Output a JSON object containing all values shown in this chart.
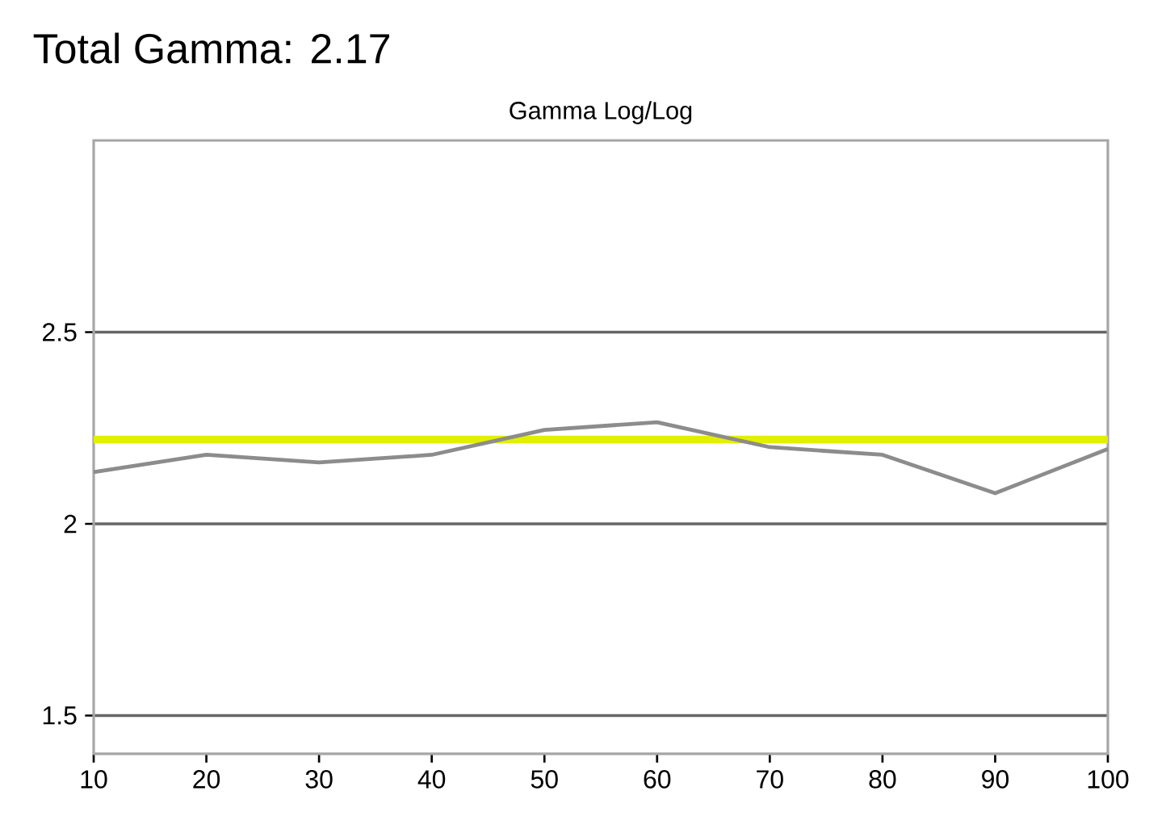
{
  "chart_data": {
    "type": "line",
    "title": "Total Gamma: 2.17",
    "subtitle": "Gamma Log/Log",
    "x": [
      10,
      20,
      30,
      40,
      50,
      60,
      70,
      80,
      90,
      100
    ],
    "series": [
      {
        "color": "#8c8c8c",
        "values": [
          2.135,
          2.18,
          2.16,
          2.18,
          2.245,
          2.265,
          2.2,
          2.18,
          2.08,
          2.195
        ]
      }
    ],
    "ref_lines": [
      {
        "axis": "y",
        "value": 2.22,
        "color": "#e2f000"
      }
    ],
    "xlim": [
      10,
      100
    ],
    "ylim": [
      1.4,
      3.0
    ],
    "xticks": [
      10,
      20,
      30,
      40,
      50,
      60,
      70,
      80,
      90,
      100
    ],
    "yticks": [
      1.5,
      2,
      2.5
    ],
    "grid": "y",
    "marker": "none",
    "line_style": "solid"
  }
}
